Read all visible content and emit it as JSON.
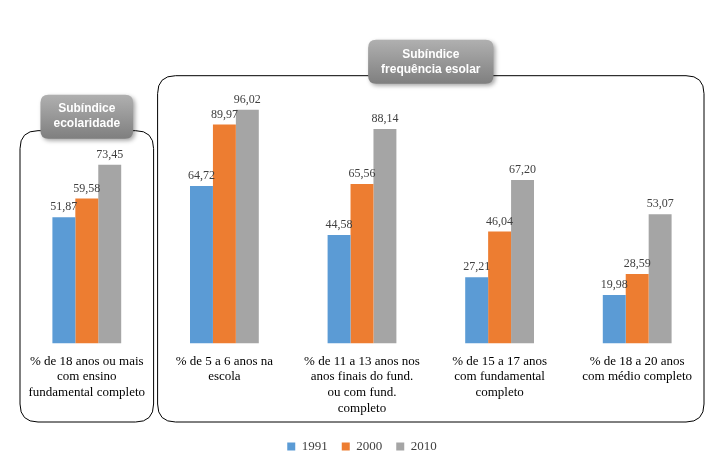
{
  "chart_data": {
    "type": "bar",
    "categories": [
      "% de 18 anos ou mais com ensino fundamental completo",
      "% de 5 a 6 anos na escola",
      "% de 11 a 13 anos nos anos finais do fund. ou com fund. completo",
      "% de 15 a 17 anos com fundamental completo",
      "% de 18 a 20 anos com médio completo"
    ],
    "series": [
      {
        "name": "1991",
        "color": "#5b9bd5",
        "values": [
          51.87,
          64.72,
          44.58,
          27.21,
          19.98
        ],
        "value_labels": [
          "51,87",
          "64,72",
          "44,58",
          "27,21",
          "19,98"
        ]
      },
      {
        "name": "2000",
        "color": "#ed7d31",
        "values": [
          59.58,
          89.97,
          65.56,
          46.04,
          28.59
        ],
        "value_labels": [
          "59,58",
          "89,97",
          "65,56",
          "46,04",
          "28,59"
        ]
      },
      {
        "name": "2010",
        "color": "#a5a5a5",
        "values": [
          73.45,
          96.02,
          88.14,
          67.2,
          53.07
        ],
        "value_labels": [
          "73,45",
          "96,02",
          "88,14",
          "67,20",
          "53,07"
        ]
      }
    ],
    "ylim": [
      0,
      100
    ],
    "grid": false,
    "legend": "bottom",
    "data_labels": true,
    "tick_labels": "x",
    "annotations": [
      {
        "text": "Subíndice ecolaridade",
        "from": 0,
        "to": 0
      },
      {
        "text": "Subíndice frequência esolar",
        "from": 1,
        "to": 4
      }
    ]
  }
}
